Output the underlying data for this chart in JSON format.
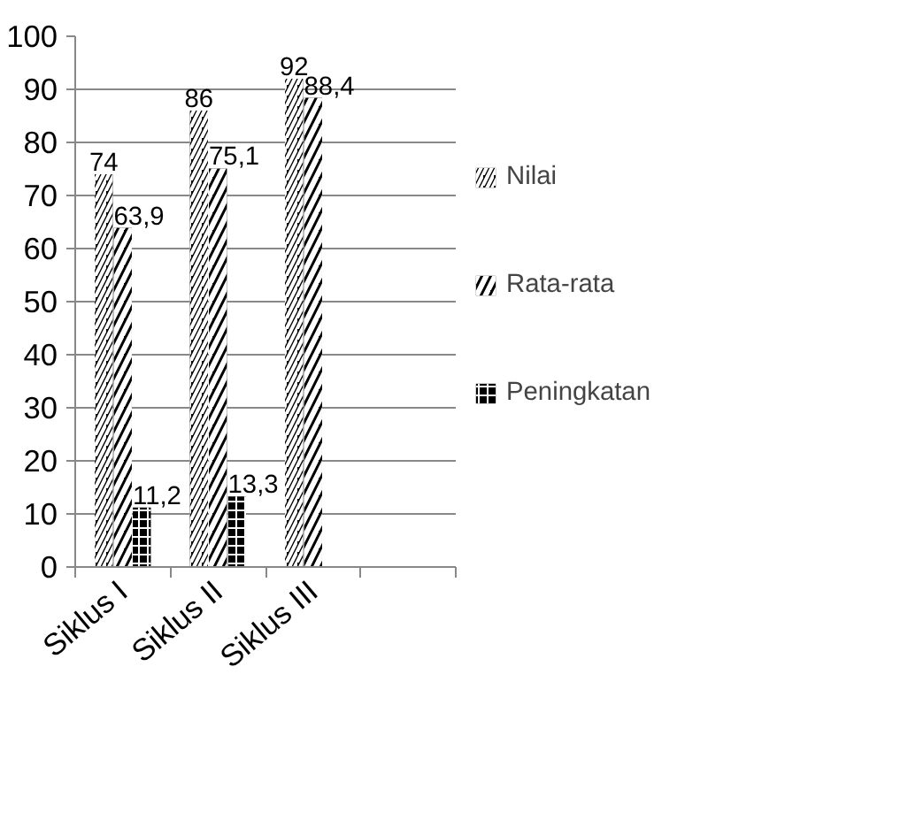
{
  "chart_data": {
    "type": "bar",
    "categories": [
      "Siklus I",
      "Siklus II",
      "Siklus III",
      null
    ],
    "series": [
      {
        "name": "Nilai",
        "color": "#000000",
        "values": [
          74,
          86,
          92,
          null
        ],
        "value_labels": [
          "74",
          "86",
          "92",
          null
        ]
      },
      {
        "name": "Rata-rata",
        "color": "#000000",
        "values": [
          63.9,
          75.1,
          88.4,
          null
        ],
        "value_labels": [
          "63,9",
          "75,1",
          "88,4",
          null
        ]
      },
      {
        "name": "Peningkatan",
        "color": "#000000",
        "values": [
          11.2,
          13.3,
          null,
          null
        ],
        "value_labels": [
          "11,2",
          "13,3",
          null,
          null
        ]
      }
    ],
    "ylim": [
      0,
      100
    ],
    "yticks": [
      0,
      10,
      20,
      30,
      40,
      50,
      60,
      70,
      80,
      90,
      100
    ],
    "grid": "y",
    "legend": "right"
  }
}
